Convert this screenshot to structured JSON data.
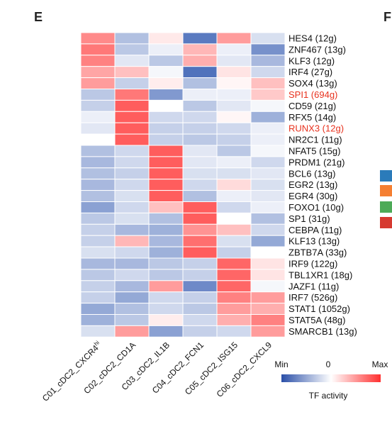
{
  "panels": {
    "left_label": "E",
    "right_label": "F"
  },
  "legend": {
    "min_label": "Min",
    "mid_label": "0",
    "max_label": "Max",
    "title": "TF activity"
  },
  "colors": {
    "low": "#3d62b5",
    "mid": "#ffffff",
    "high": "#ff4b4b",
    "highlight_text": "#e8321e",
    "text": "#111111",
    "swatches": [
      "#2b7bba",
      "#f57f32",
      "#4daa57",
      "#d63a30"
    ]
  },
  "chart_data": {
    "type": "heatmap",
    "columns": [
      "C01_cDC2_CXCR4",
      "C02_cDC2_CD1A",
      "C03_cDC2_IL1B",
      "C04_cDC2_FCN1",
      "C05_cDC2_ISG15",
      "C06_cDC2_CXCL9"
    ],
    "column_superscripts": [
      "hi",
      "",
      "",
      "",
      "",
      ""
    ],
    "rows": [
      {
        "label": "HES4 (12g)",
        "highlight": false,
        "values": [
          0.65,
          -0.4,
          0.12,
          -0.85,
          0.55,
          -0.2
        ]
      },
      {
        "label": "ZNF467 (13g)",
        "highlight": false,
        "values": [
          0.75,
          -0.35,
          -0.1,
          0.4,
          -0.1,
          -0.7
        ]
      },
      {
        "label": "KLF3 (12g)",
        "highlight": false,
        "values": [
          0.7,
          -0.15,
          -0.35,
          0.45,
          -0.15,
          -0.45
        ]
      },
      {
        "label": "IRF4 (27g)",
        "highlight": false,
        "values": [
          0.5,
          0.35,
          -0.05,
          -0.9,
          0.15,
          -0.25
        ]
      },
      {
        "label": "SOX4 (13g)",
        "highlight": false,
        "values": [
          0.55,
          -0.3,
          0.1,
          -0.4,
          0.05,
          0.35
        ]
      },
      {
        "label": "SPI1 (694g)",
        "highlight": true,
        "values": [
          -0.35,
          0.75,
          -0.65,
          -0.1,
          -0.1,
          0.3
        ]
      },
      {
        "label": "CD59 (21g)",
        "highlight": false,
        "values": [
          -0.3,
          0.9,
          0.0,
          -0.35,
          -0.15,
          -0.05
        ]
      },
      {
        "label": "RFX5 (14g)",
        "highlight": false,
        "values": [
          -0.1,
          0.9,
          -0.25,
          -0.25,
          0.05,
          -0.5
        ]
      },
      {
        "label": "RUNX3 (12g)",
        "highlight": true,
        "values": [
          -0.15,
          0.9,
          -0.3,
          -0.3,
          -0.25,
          -0.1
        ]
      },
      {
        "label": "NR2C1 (11g)",
        "highlight": false,
        "values": [
          0.0,
          0.9,
          -0.3,
          -0.35,
          -0.3,
          -0.1
        ]
      },
      {
        "label": "NFAT5 (15g)",
        "highlight": false,
        "values": [
          -0.4,
          -0.25,
          0.9,
          -0.15,
          -0.35,
          -0.05
        ]
      },
      {
        "label": "PRDM1 (21g)",
        "highlight": false,
        "values": [
          -0.45,
          -0.25,
          0.9,
          -0.15,
          -0.1,
          -0.25
        ]
      },
      {
        "label": "BCL6 (13g)",
        "highlight": false,
        "values": [
          -0.4,
          -0.3,
          0.9,
          -0.2,
          -0.2,
          -0.15
        ]
      },
      {
        "label": "EGR2 (13g)",
        "highlight": false,
        "values": [
          -0.45,
          -0.25,
          0.9,
          -0.25,
          0.2,
          -0.2
        ]
      },
      {
        "label": "EGR4 (30g)",
        "highlight": false,
        "values": [
          -0.4,
          -0.2,
          0.9,
          -0.4,
          -0.1,
          -0.15
        ]
      },
      {
        "label": "FOXO1 (10g)",
        "highlight": false,
        "values": [
          -0.6,
          -0.25,
          0.35,
          0.9,
          -0.25,
          -0.1
        ]
      },
      {
        "label": "SP1 (31g)",
        "highlight": false,
        "values": [
          -0.35,
          -0.2,
          -0.4,
          0.9,
          0.0,
          -0.4
        ]
      },
      {
        "label": "CEBPA (11g)",
        "highlight": false,
        "values": [
          -0.3,
          -0.45,
          -0.5,
          0.6,
          0.35,
          -0.25
        ]
      },
      {
        "label": "KLF13 (13g)",
        "highlight": false,
        "values": [
          -0.3,
          0.4,
          -0.45,
          0.8,
          -0.2,
          -0.55
        ]
      },
      {
        "label": "ZBTB7A (33g)",
        "highlight": false,
        "values": [
          -0.2,
          -0.25,
          -0.5,
          0.9,
          -0.3,
          0.0
        ]
      },
      {
        "label": "IRF9 (122g)",
        "highlight": false,
        "values": [
          -0.45,
          -0.45,
          -0.35,
          -0.3,
          0.85,
          0.15
        ]
      },
      {
        "label": "TBL1XR1 (18g)",
        "highlight": false,
        "values": [
          -0.35,
          -0.25,
          -0.35,
          -0.3,
          0.85,
          0.15
        ]
      },
      {
        "label": "JAZF1 (11g)",
        "highlight": false,
        "values": [
          -0.3,
          -0.45,
          0.55,
          -0.75,
          0.85,
          -0.05
        ]
      },
      {
        "label": "IRF7 (526g)",
        "highlight": false,
        "values": [
          -0.3,
          -0.55,
          -0.25,
          -0.3,
          0.7,
          0.55
        ]
      },
      {
        "label": "STAT1 (1052g)",
        "highlight": false,
        "values": [
          -0.55,
          -0.4,
          -0.25,
          -0.35,
          0.55,
          0.45
        ]
      },
      {
        "label": "STAT5A (48g)",
        "highlight": false,
        "values": [
          -0.5,
          -0.35,
          0.1,
          -0.25,
          0.45,
          0.7
        ]
      },
      {
        "label": "SMARCB1 (13g)",
        "highlight": false,
        "values": [
          -0.2,
          0.55,
          -0.6,
          -0.3,
          -0.25,
          0.55
        ]
      }
    ],
    "value_range": [
      -1,
      1
    ]
  }
}
